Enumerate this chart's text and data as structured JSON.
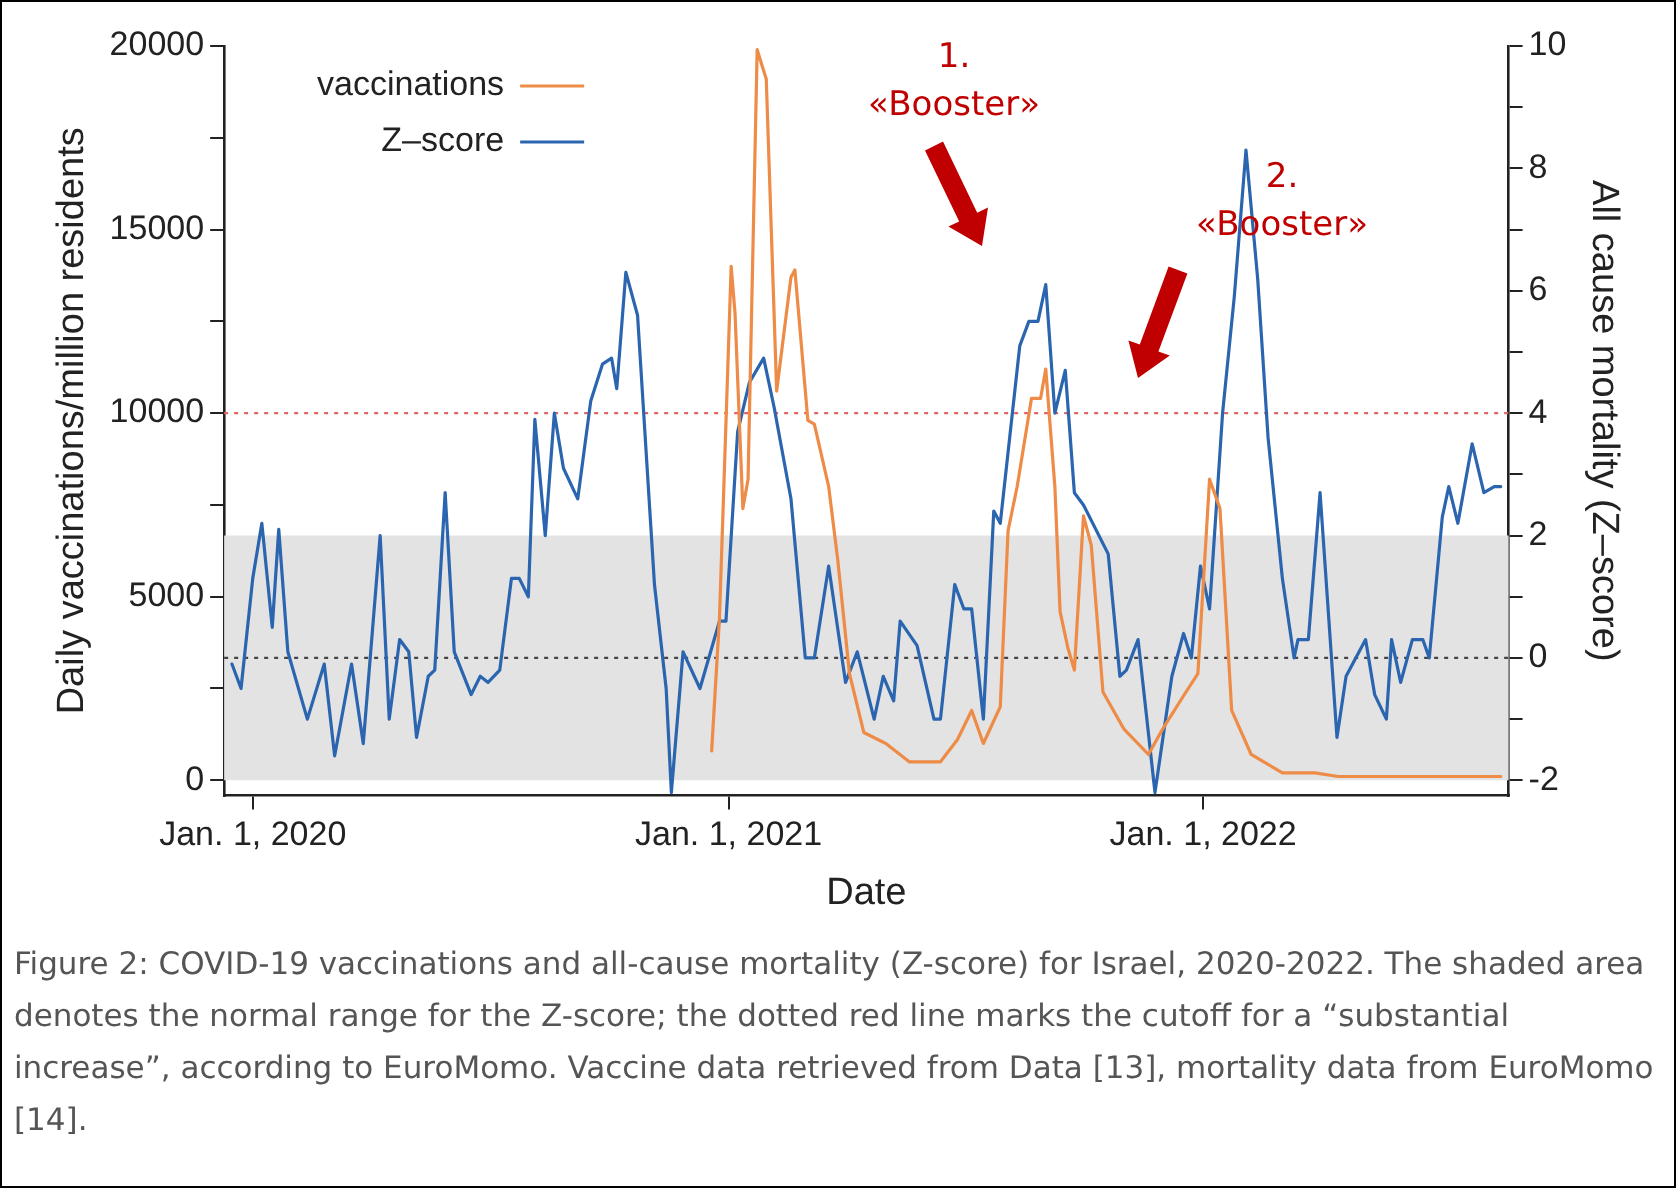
{
  "chart_data": {
    "type": "line",
    "xlabel": "Date",
    "ylabel": "Daily vaccinations/million residents",
    "y2label": "All cause mortality (Z–score)",
    "xlim": [
      "2019-12-10",
      "2022-08-24"
    ],
    "xticks": [
      {
        "value": "2020-01-01",
        "label": "Jan. 1, 2020"
      },
      {
        "value": "2021-01-01",
        "label": "Jan. 1, 2021"
      },
      {
        "value": "2022-01-01",
        "label": "Jan. 1, 2022"
      }
    ],
    "ylim": [
      -420,
      20000
    ],
    "yticks": [
      0,
      {
        "value": 2500,
        "label": null
      },
      5000,
      {
        "value": 7500,
        "label": null
      },
      10000,
      {
        "value": 12500,
        "label": null
      },
      15000,
      {
        "value": 17500,
        "label": null
      },
      20000
    ],
    "y2lim": [
      -2.25,
      10
    ],
    "y2ticks": [
      -2,
      {
        "value": -1,
        "label": null
      },
      0,
      {
        "value": 1,
        "label": null
      },
      2,
      {
        "value": 3,
        "label": null
      },
      4,
      {
        "value": 5,
        "label": null
      },
      6,
      {
        "value": 7,
        "label": null
      },
      8,
      {
        "value": 9,
        "label": null
      },
      10
    ],
    "series": [
      {
        "name": "vaccinations",
        "color": "#ee8b47",
        "x": [
          "2020-12-19",
          "2020-12-25",
          "2021-01-03",
          "2021-01-06",
          "2021-01-12",
          "2021-01-16",
          "2021-01-23",
          "2021-01-30",
          "2021-02-07",
          "2021-02-18",
          "2021-02-21",
          "2021-03-03",
          "2021-03-08",
          "2021-03-19",
          "2021-03-26",
          "2021-04-04",
          "2021-04-15",
          "2021-05-02",
          "2021-05-20",
          "2021-06-13",
          "2021-06-26",
          "2021-07-07",
          "2021-07-16",
          "2021-07-29",
          "2021-08-04",
          "2021-08-11",
          "2021-08-22",
          "2021-08-29",
          "2021-09-02",
          "2021-09-09",
          "2021-09-13",
          "2021-09-19",
          "2021-09-24",
          "2021-10-01",
          "2021-10-07",
          "2021-10-16",
          "2021-11-01",
          "2021-11-20",
          "2021-12-01",
          "2021-12-17",
          "2021-12-28",
          "2022-01-06",
          "2022-01-14",
          "2022-01-23",
          "2022-02-07",
          "2022-03-03",
          "2022-03-28",
          "2022-04-15",
          "2022-05-15",
          "2022-06-20",
          "2022-08-18"
        ],
        "values": [
          800,
          4400,
          14000,
          12700,
          7400,
          8200,
          19900,
          19100,
          10600,
          13700,
          13900,
          9800,
          9700,
          8000,
          6000,
          2900,
          1300,
          1000,
          500,
          500,
          1100,
          1900,
          1000,
          2000,
          6800,
          8000,
          10400,
          10400,
          11200,
          8000,
          4600,
          3600,
          3000,
          7200,
          6400,
          2400,
          1400,
          700,
          1400,
          2300,
          2900,
          8200,
          7400,
          1900,
          700,
          200,
          200,
          100,
          100,
          100,
          100
        ]
      },
      {
        "name": "Z–score",
        "color": "#2b65b0",
        "axis": "y2",
        "x": [
          "2019-12-16",
          "2019-12-23",
          "2020-01-01",
          "2020-01-08",
          "2020-01-16",
          "2020-01-21",
          "2020-01-28",
          "2020-02-12",
          "2020-02-25",
          "2020-03-04",
          "2020-03-17",
          "2020-03-26",
          "2020-04-08",
          "2020-04-15",
          "2020-04-23",
          "2020-04-30",
          "2020-05-06",
          "2020-05-15",
          "2020-05-20",
          "2020-05-28",
          "2020-06-04",
          "2020-06-17",
          "2020-06-24",
          "2020-06-30",
          "2020-07-09",
          "2020-07-18",
          "2020-07-24",
          "2020-07-31",
          "2020-08-05",
          "2020-08-13",
          "2020-08-20",
          "2020-08-27",
          "2020-09-07",
          "2020-09-17",
          "2020-09-26",
          "2020-10-03",
          "2020-10-07",
          "2020-10-14",
          "2020-10-23",
          "2020-11-05",
          "2020-11-14",
          "2020-11-18",
          "2020-11-27",
          "2020-12-10",
          "2020-12-25",
          "2020-12-30",
          "2021-01-08",
          "2021-01-17",
          "2021-01-28",
          "2021-02-05",
          "2021-02-18",
          "2021-03-01",
          "2021-03-08",
          "2021-03-19",
          "2021-04-01",
          "2021-04-10",
          "2021-04-23",
          "2021-04-30",
          "2021-05-08",
          "2021-05-13",
          "2021-05-26",
          "2021-06-08",
          "2021-06-13",
          "2021-06-24",
          "2021-07-01",
          "2021-07-07",
          "2021-07-16",
          "2021-07-24",
          "2021-07-29",
          "2021-08-13",
          "2021-08-20",
          "2021-08-27",
          "2021-09-02",
          "2021-09-09",
          "2021-09-17",
          "2021-09-24",
          "2021-10-01",
          "2021-10-20",
          "2021-10-29",
          "2021-11-03",
          "2021-11-12",
          "2021-11-25",
          "2021-12-08",
          "2021-12-17",
          "2021-12-23",
          "2021-12-30",
          "2022-01-06",
          "2022-01-16",
          "2022-01-25",
          "2022-02-03",
          "2022-02-12",
          "2022-02-20",
          "2022-03-03",
          "2022-03-12",
          "2022-03-15",
          "2022-03-23",
          "2022-04-01",
          "2022-04-14",
          "2022-04-21",
          "2022-05-06",
          "2022-05-13",
          "2022-05-22",
          "2022-05-26",
          "2022-06-02",
          "2022-06-11",
          "2022-06-19",
          "2022-06-24",
          "2022-07-04",
          "2022-07-09",
          "2022-07-16",
          "2022-07-27",
          "2022-08-05",
          "2022-08-13",
          "2022-08-18"
        ],
        "values": [
          -0.1,
          -0.5,
          1.3,
          2.2,
          0.5,
          2.1,
          0.1,
          -1.0,
          -0.1,
          -1.6,
          -0.1,
          -1.4,
          2.0,
          -1.0,
          0.3,
          0.1,
          -1.3,
          -0.3,
          -0.2,
          2.7,
          0.1,
          -0.6,
          -0.3,
          -0.4,
          -0.2,
          1.3,
          1.3,
          1.0,
          3.9,
          2.0,
          4.0,
          3.1,
          2.6,
          4.2,
          4.8,
          4.9,
          4.4,
          6.3,
          5.6,
          1.2,
          -0.5,
          -2.2,
          0.1,
          -0.5,
          0.6,
          0.6,
          3.7,
          4.5,
          4.9,
          4.1,
          2.6,
          0.0,
          0.0,
          1.5,
          -0.4,
          0.1,
          -1.0,
          -0.3,
          -0.7,
          0.6,
          0.2,
          -1.0,
          -1.0,
          1.2,
          0.8,
          0.8,
          -1.0,
          2.4,
          2.2,
          5.1,
          5.5,
          5.5,
          6.1,
          4.0,
          4.7,
          2.7,
          2.5,
          1.7,
          -0.3,
          -0.2,
          0.3,
          -2.2,
          -0.3,
          0.4,
          0.0,
          1.5,
          0.8,
          4.0,
          5.9,
          8.3,
          6.2,
          3.6,
          1.3,
          0.0,
          0.3,
          0.3,
          2.7,
          -1.3,
          -0.3,
          0.3,
          -0.6,
          -1.0,
          0.3,
          -0.4,
          0.3,
          0.3,
          0.0,
          2.3,
          2.8,
          2.2,
          3.5,
          2.7,
          2.8,
          2.8
        ]
      }
    ],
    "bands": [
      {
        "axis": "y2",
        "from": -2,
        "to": 2,
        "color": "#e3e3e3"
      }
    ],
    "ref_lines": [
      {
        "axis": "y2",
        "value": 4,
        "color": "#e06666",
        "line_style": "dotted"
      },
      {
        "axis": "y2",
        "value": 0,
        "color": "#444444",
        "line_style": "dotted"
      }
    ],
    "legend": "top left",
    "grid": false,
    "marker": "none",
    "line_style": "solid",
    "annotations": [
      "1.\n«Booster»",
      "2.\n«Booster»",
      "Figure 2: COVID-19 vaccinations and all-cause mortality (Z-score) for Israel, 2020-2022. The shaded area denotes the normal range for the Z-score; the dotted red line marks the cutoff for a “substantial increase”, according to EuroMomo. Vaccine data retrieved from Data [13], mortality data from EuroMomo [14]."
    ]
  }
}
